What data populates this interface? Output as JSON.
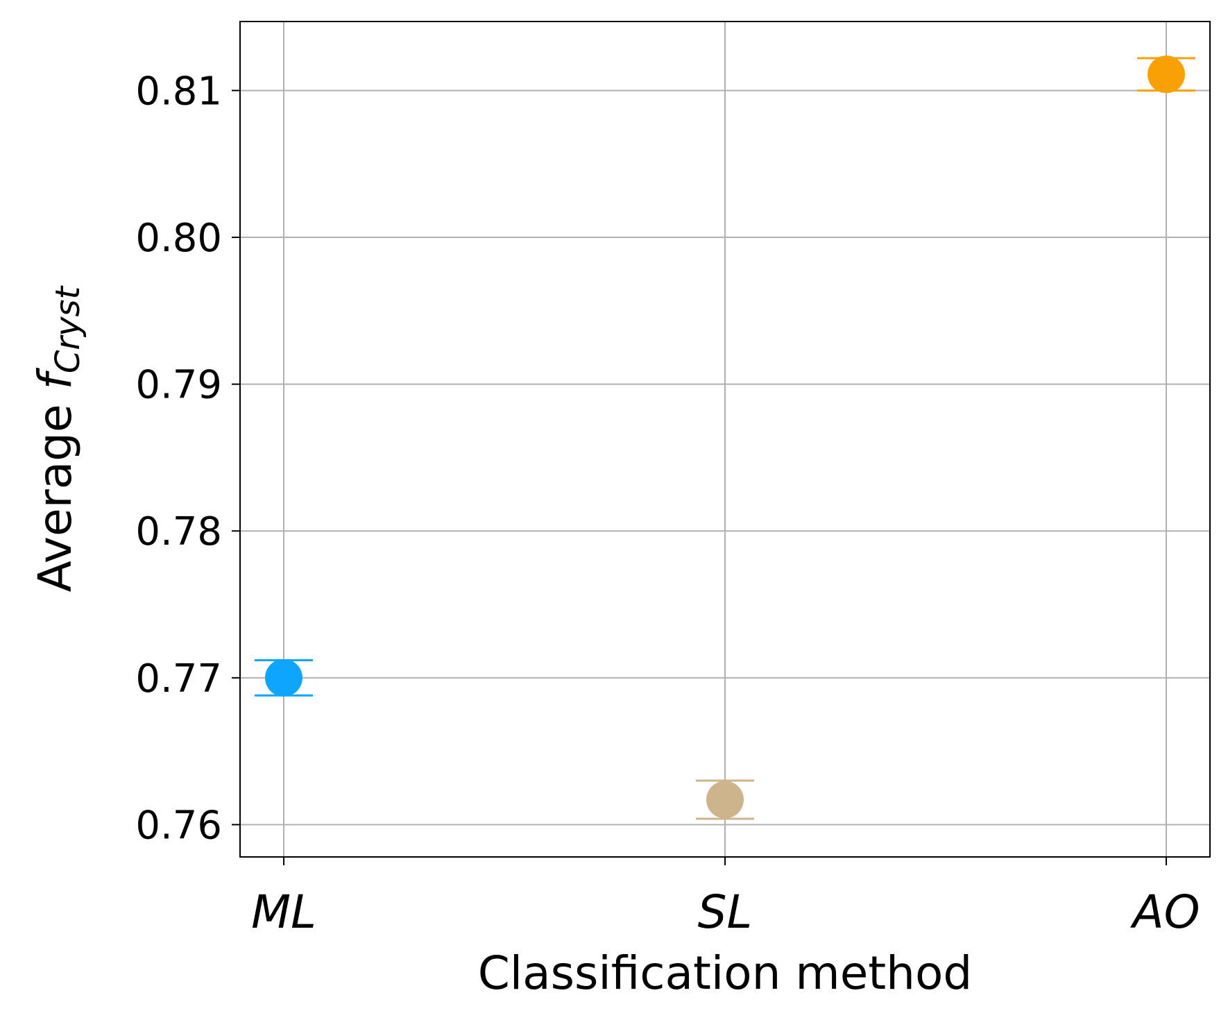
{
  "chart_data": {
    "type": "scatter",
    "title": "",
    "xlabel": "Classification method",
    "ylabel": {
      "prefix": "Average ",
      "symbol": "f",
      "subscript": "Cryst"
    },
    "categories": [
      "ML",
      "SL",
      "AO"
    ],
    "values": [
      0.77,
      0.7617,
      0.8111
    ],
    "errors": [
      0.0012,
      0.0013,
      0.0011
    ],
    "colors": [
      "#0ea5ff",
      "#cdb48d",
      "#f8a004"
    ],
    "ylim": [
      0.7578,
      0.8147
    ],
    "yticks": [
      0.76,
      0.77,
      0.78,
      0.79,
      0.8,
      0.81
    ],
    "ytick_labels": [
      "0.76",
      "0.77",
      "0.78",
      "0.79",
      "0.80",
      "0.81"
    ],
    "grid": true,
    "legend": "none"
  }
}
